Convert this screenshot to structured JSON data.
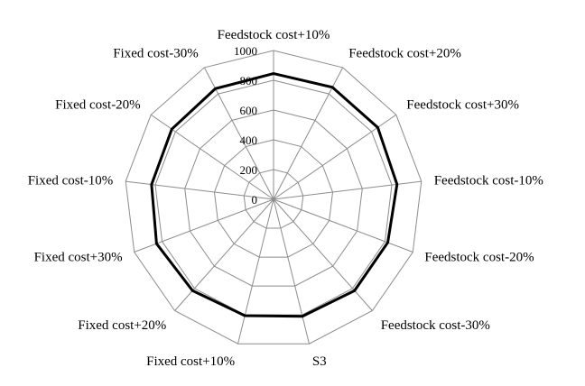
{
  "chart_data": {
    "type": "radar",
    "title": "",
    "categories": [
      "Feedstock cost+10%",
      "Feedstock cost+20%",
      "Feedstock cost+30%",
      "Feedstock cost-10%",
      "Feedstock cost-20%",
      "Feedstock cost-30%",
      "S3",
      "Fixed cost+10%",
      "Fixed cost+20%",
      "Fixed cost+30%",
      "Fixed cost-10%",
      "Fixed cost-20%",
      "Fixed cost-30%"
    ],
    "series": [
      {
        "values": [
          845,
          850,
          850,
          835,
          820,
          820,
          810,
          805,
          820,
          840,
          825,
          830,
          840
        ]
      }
    ],
    "rlim": [
      0,
      1000
    ],
    "ticks": [
      0,
      200,
      400,
      600,
      800,
      1000
    ],
    "tick_labels": [
      "0",
      "200",
      "400",
      "600",
      "800",
      "1000"
    ],
    "grid": true,
    "legend": "none",
    "colors": {
      "series": "#000000",
      "grid": "#8c8c8c"
    }
  }
}
